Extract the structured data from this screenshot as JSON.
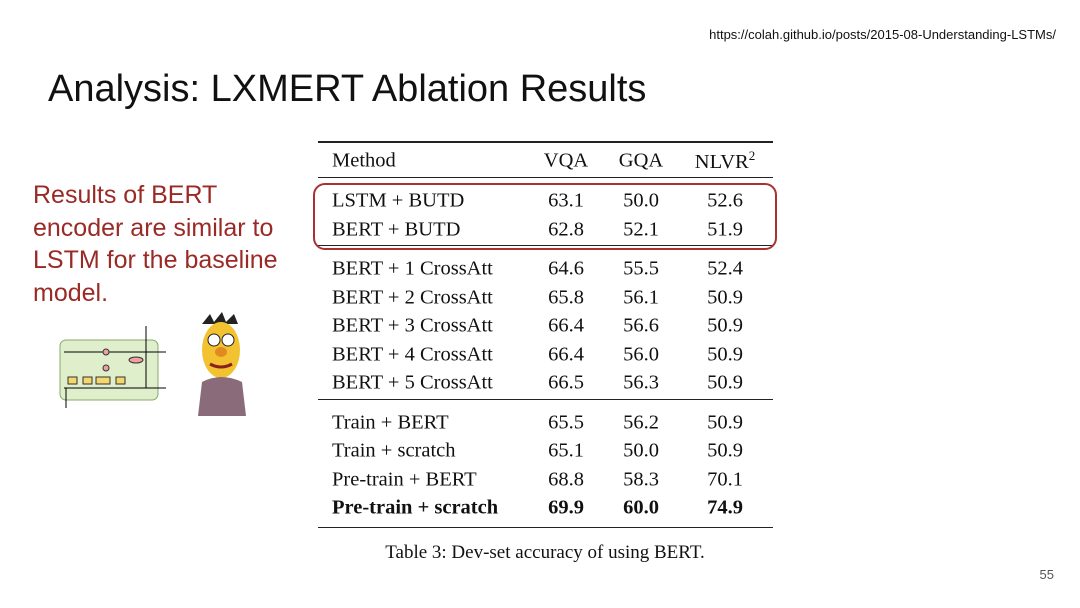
{
  "header": {
    "url": "https://colah.github.io/posts/2015-08-Understanding-LSTMs/",
    "title": "Analysis: LXMERT Ablation Results"
  },
  "note": {
    "lines": [
      "Results of BERT",
      "encoder are similar to",
      "LSTM for the baseline",
      "model."
    ]
  },
  "table": {
    "columns": [
      "Method",
      "VQA",
      "GQA",
      {
        "text": "NLVR",
        "sup": "2"
      }
    ],
    "groups": [
      [
        [
          "LSTM + BUTD",
          "63.1",
          "50.0",
          "52.6"
        ],
        [
          "BERT + BUTD",
          "62.8",
          "52.1",
          "51.9"
        ]
      ],
      [
        [
          "BERT + 1 CrossAtt",
          "64.6",
          "55.5",
          "52.4"
        ],
        [
          "BERT + 2 CrossAtt",
          "65.8",
          "56.1",
          "50.9"
        ],
        [
          "BERT + 3 CrossAtt",
          "66.4",
          "56.6",
          "50.9"
        ],
        [
          "BERT + 4 CrossAtt",
          "66.4",
          "56.0",
          "50.9"
        ],
        [
          "BERT + 5 CrossAtt",
          "66.5",
          "56.3",
          "50.9"
        ]
      ],
      [
        [
          "Train + BERT",
          "65.5",
          "56.2",
          "50.9"
        ],
        [
          "Train + scratch",
          "65.1",
          "50.0",
          "50.9"
        ],
        [
          "Pre-train + BERT",
          "68.8",
          "58.3",
          "70.1"
        ],
        [
          "Pre-train + scratch",
          "69.9",
          "60.0",
          "74.9"
        ]
      ]
    ],
    "caption": "Table 3: Dev-set accuracy of using BERT."
  },
  "page_number": "55"
}
